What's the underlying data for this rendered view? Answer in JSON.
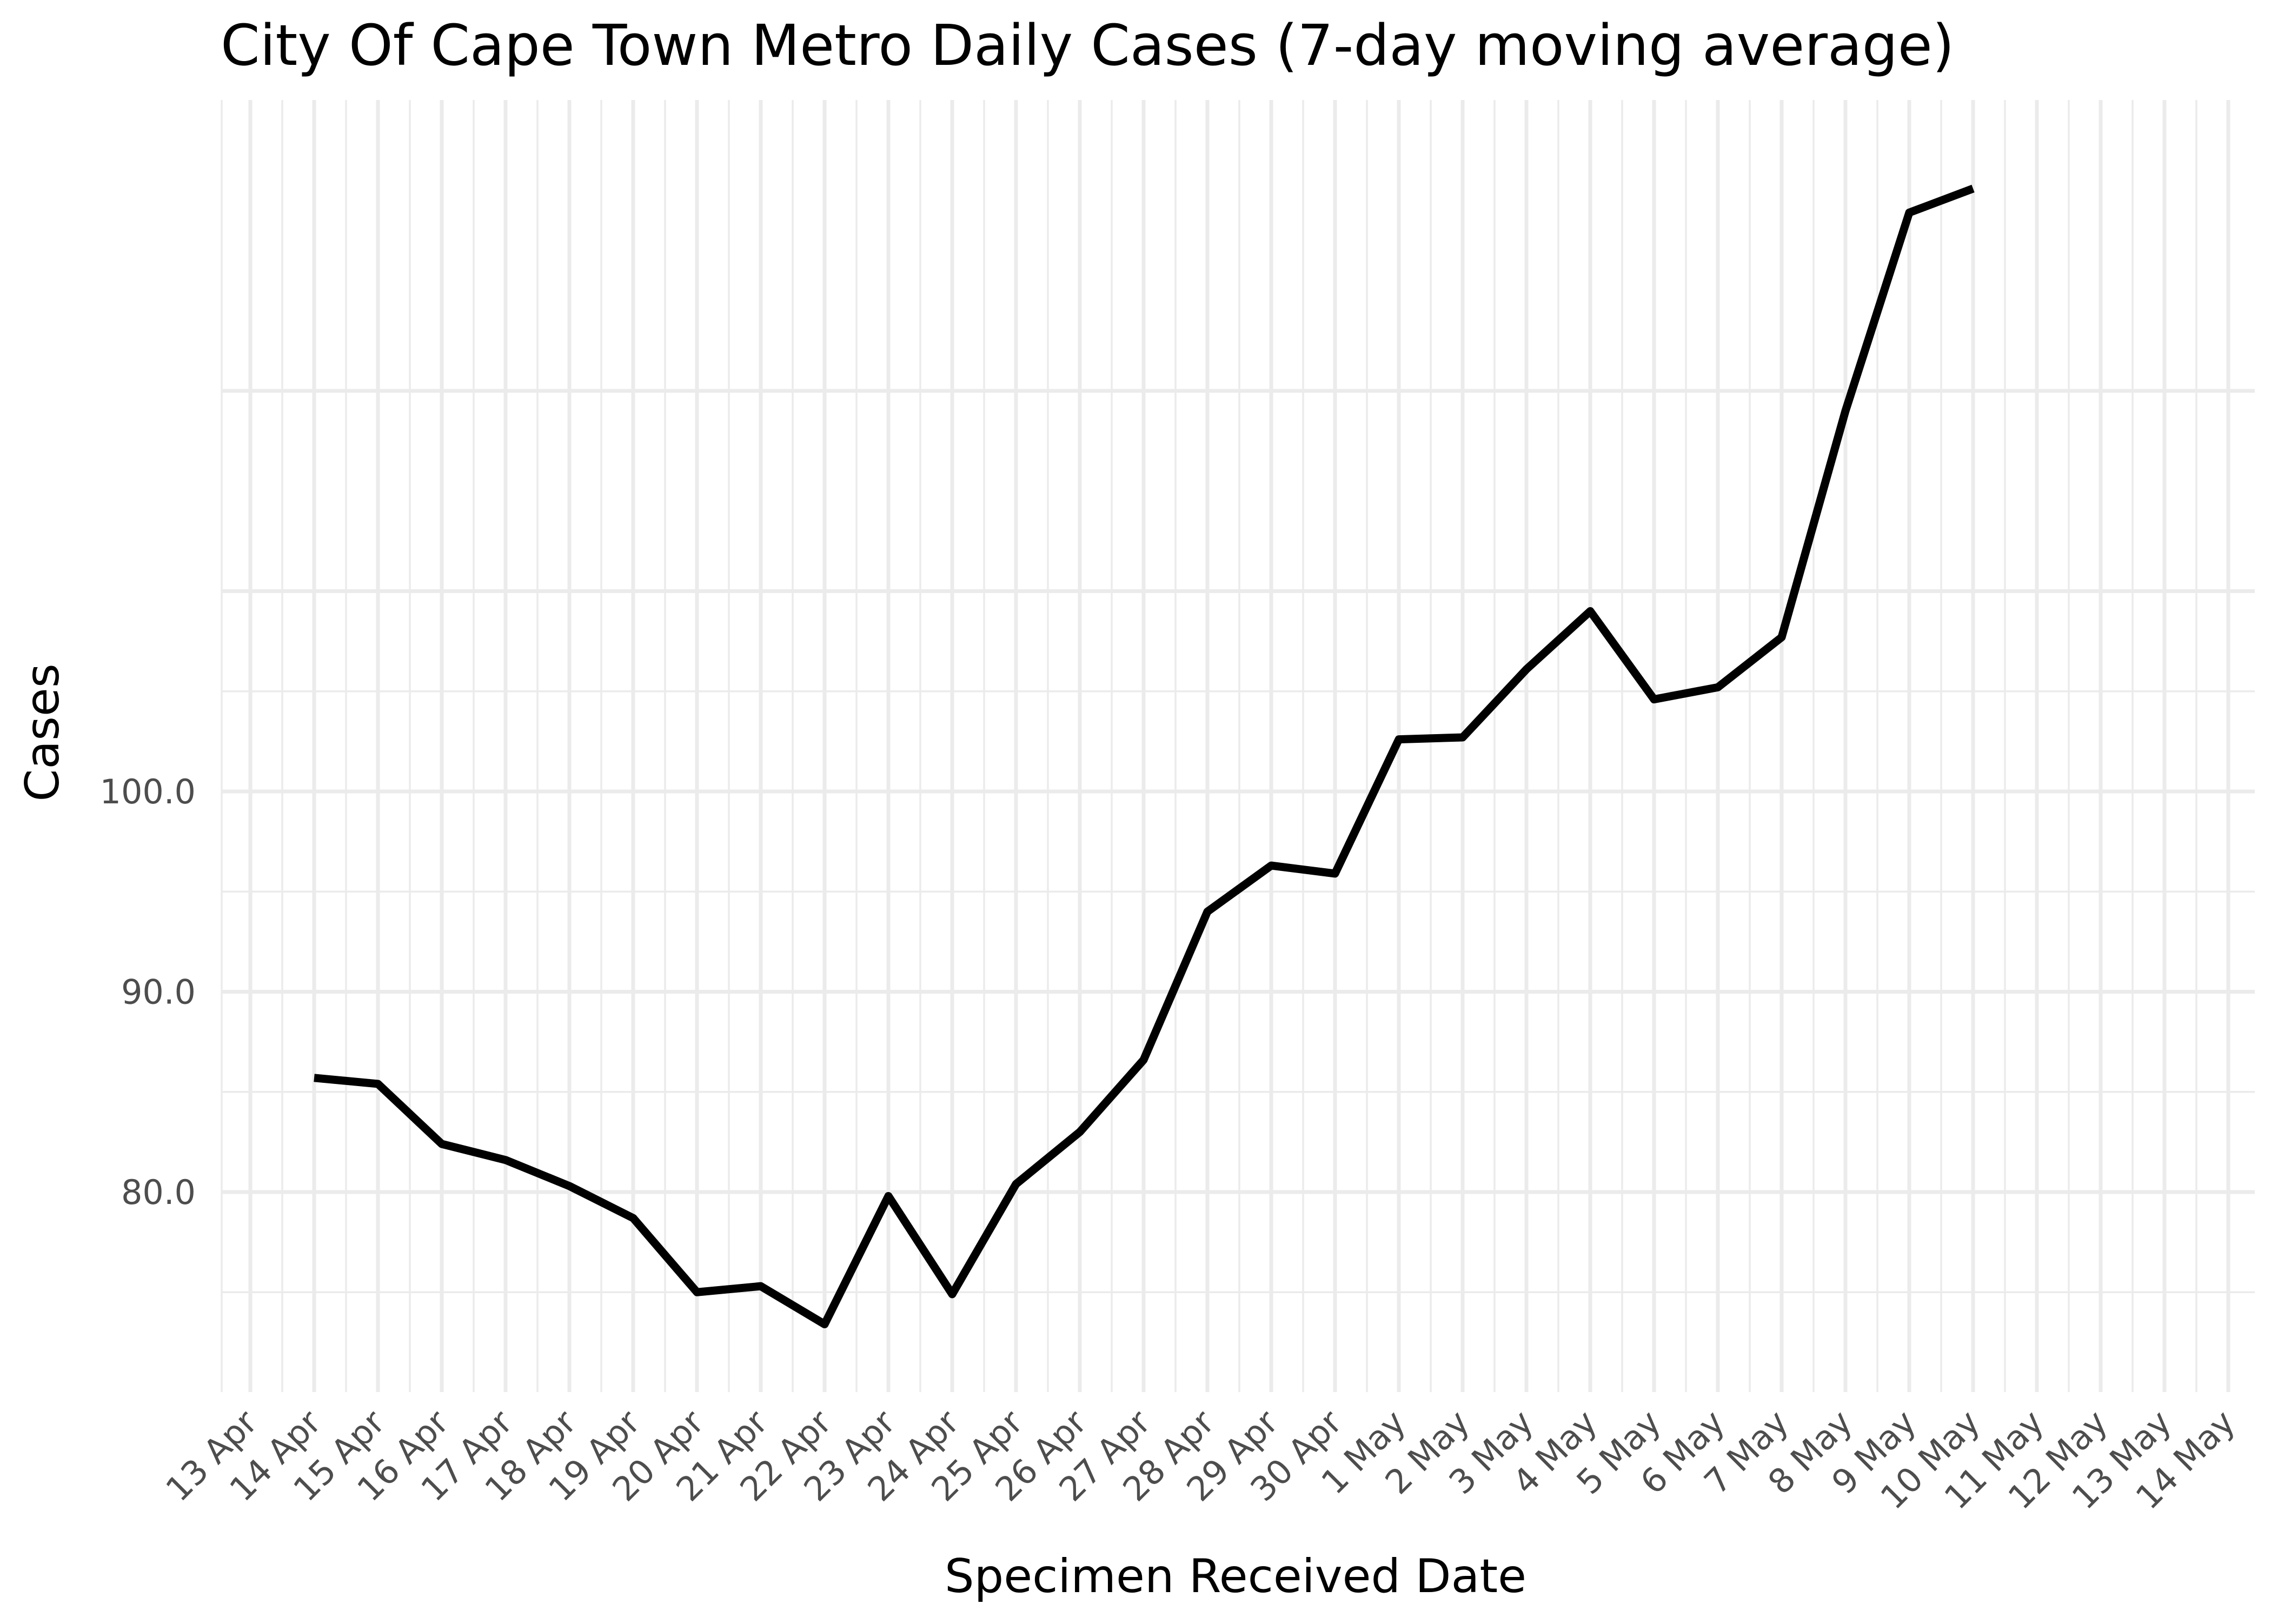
{
  "chart_data": {
    "type": "line",
    "title": "City Of Cape Town Metro Daily Cases (7-day moving average)",
    "xlabel": "Specimen Received Date",
    "ylabel": "Cases",
    "x_tick_labels": [
      "13 Apr",
      "14 Apr",
      "15 Apr",
      "16 Apr",
      "17 Apr",
      "18 Apr",
      "19 Apr",
      "20 Apr",
      "21 Apr",
      "22 Apr",
      "23 Apr",
      "24 Apr",
      "25 Apr",
      "26 Apr",
      "27 Apr",
      "28 Apr",
      "29 Apr",
      "30 Apr",
      "1 May",
      "2 May",
      "3 May",
      "4 May",
      "5 May",
      "6 May",
      "7 May",
      "8 May",
      "9 May",
      "10 May",
      "11 May",
      "12 May",
      "13 May",
      "14 May"
    ],
    "y_ticks": [
      80,
      90,
      100
    ],
    "y_tick_labels": [
      "80.0",
      "90.0",
      "100.0"
    ],
    "xlim": [
      "13 Apr",
      "14 May"
    ],
    "ylim": [
      71.5,
      131
    ],
    "grid": true,
    "series": [
      {
        "x": [
          "14 Apr",
          "15 Apr",
          "16 Apr",
          "17 Apr",
          "18 Apr",
          "19 Apr",
          "20 Apr",
          "21 Apr",
          "22 Apr",
          "23 Apr",
          "24 Apr",
          "25 Apr",
          "26 Apr",
          "27 Apr",
          "28 Apr",
          "29 Apr",
          "30 Apr",
          "1 May",
          "2 May",
          "3 May",
          "4 May",
          "5 May",
          "6 May",
          "7 May",
          "8 May",
          "9 May",
          "10 May"
        ],
        "values": [
          85.7,
          85.4,
          82.4,
          81.6,
          80.3,
          78.7,
          75.0,
          75.3,
          73.4,
          79.8,
          74.9,
          80.4,
          83.0,
          86.6,
          94.0,
          96.3,
          95.9,
          102.6,
          102.7,
          106.1,
          109.0,
          104.6,
          105.2,
          107.7,
          119.0,
          128.9,
          130.1
        ],
        "color": "#000000"
      }
    ]
  }
}
